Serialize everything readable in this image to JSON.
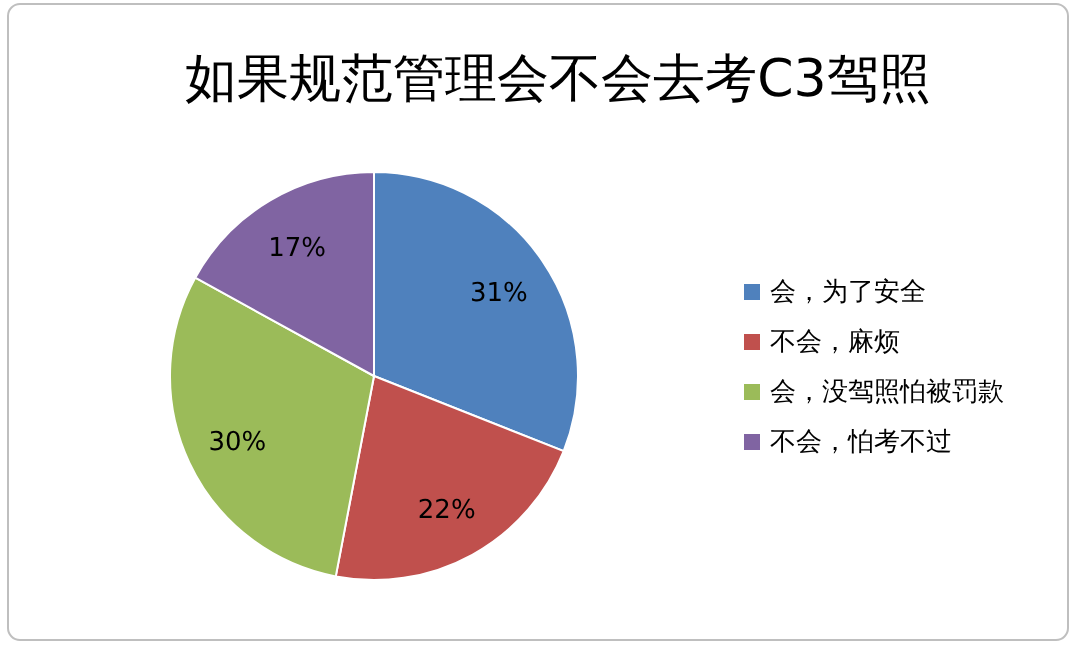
{
  "chart_data": {
    "type": "pie",
    "title": "如果规范管理会不会去考C3驾照",
    "categories": [
      "会，为了安全",
      "不会，麻烦",
      "会，没驾照怕被罚款",
      "不会，怕考不过"
    ],
    "values": [
      31,
      22,
      30,
      17
    ],
    "colors": [
      "#4f81bd",
      "#c0504d",
      "#9bbb59",
      "#8064a2"
    ],
    "value_labels": [
      "31%",
      "22%",
      "30%",
      "17%"
    ],
    "legend": "right"
  }
}
